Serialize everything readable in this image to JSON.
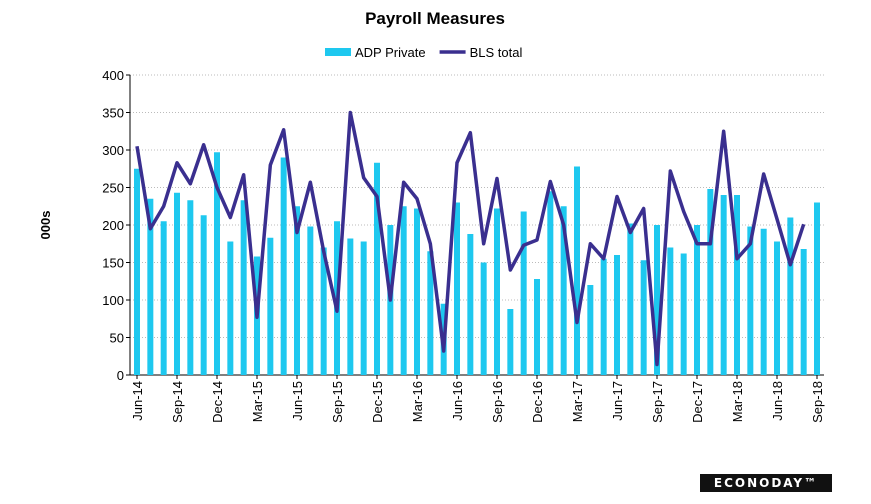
{
  "chart_data": {
    "type": "bar_line",
    "title": "Payroll Measures",
    "y_label": "000s",
    "categories": [
      "Jun-14",
      null,
      null,
      "Sep-14",
      null,
      null,
      "Dec-14",
      null,
      null,
      "Mar-15",
      null,
      null,
      "Jun-15",
      null,
      null,
      "Sep-15",
      null,
      null,
      "Dec-15",
      null,
      null,
      "Mar-16",
      null,
      null,
      "Jun-16",
      null,
      null,
      "Sep-16",
      null,
      null,
      "Dec-16",
      null,
      null,
      "Mar-17",
      null,
      null,
      "Jun-17",
      null,
      null,
      "Sep-17",
      null,
      null,
      "Dec-17",
      null,
      null,
      "Mar-18",
      null,
      null,
      "Jun-18",
      null,
      null,
      "Sep-18"
    ],
    "series": [
      {
        "name": "ADP Private",
        "kind": "bar",
        "color": "#1ec8ef",
        "values": [
          275,
          235,
          205,
          243,
          233,
          213,
          297,
          178,
          233,
          158,
          183,
          290,
          225,
          198,
          170,
          205,
          182,
          178,
          283,
          200,
          225,
          222,
          165,
          95,
          230,
          188,
          150,
          222,
          88,
          218,
          128,
          245,
          225,
          278,
          120,
          155,
          160,
          202,
          153,
          200,
          170,
          162,
          200,
          248,
          240,
          240,
          198,
          195,
          178,
          210,
          168,
          230
        ]
      },
      {
        "name": "BLS total",
        "kind": "line",
        "color": "#3a2f8f",
        "values": [
          305,
          195,
          225,
          283,
          255,
          307,
          250,
          210,
          267,
          77,
          280,
          327,
          190,
          257,
          165,
          85,
          350,
          263,
          238,
          100,
          257,
          235,
          175,
          32,
          283,
          323,
          175,
          262,
          140,
          173,
          180,
          258,
          200,
          70,
          175,
          155,
          238,
          190,
          222,
          14,
          272,
          218,
          175,
          175,
          325,
          155,
          175,
          268,
          208,
          147,
          201,
          null
        ]
      }
    ],
    "ylim": [
      0,
      400
    ],
    "yticks": [
      0,
      50,
      100,
      150,
      200,
      250,
      300,
      350,
      400
    ],
    "grid": true,
    "legend": "top",
    "footer": "ECONODAY™"
  }
}
